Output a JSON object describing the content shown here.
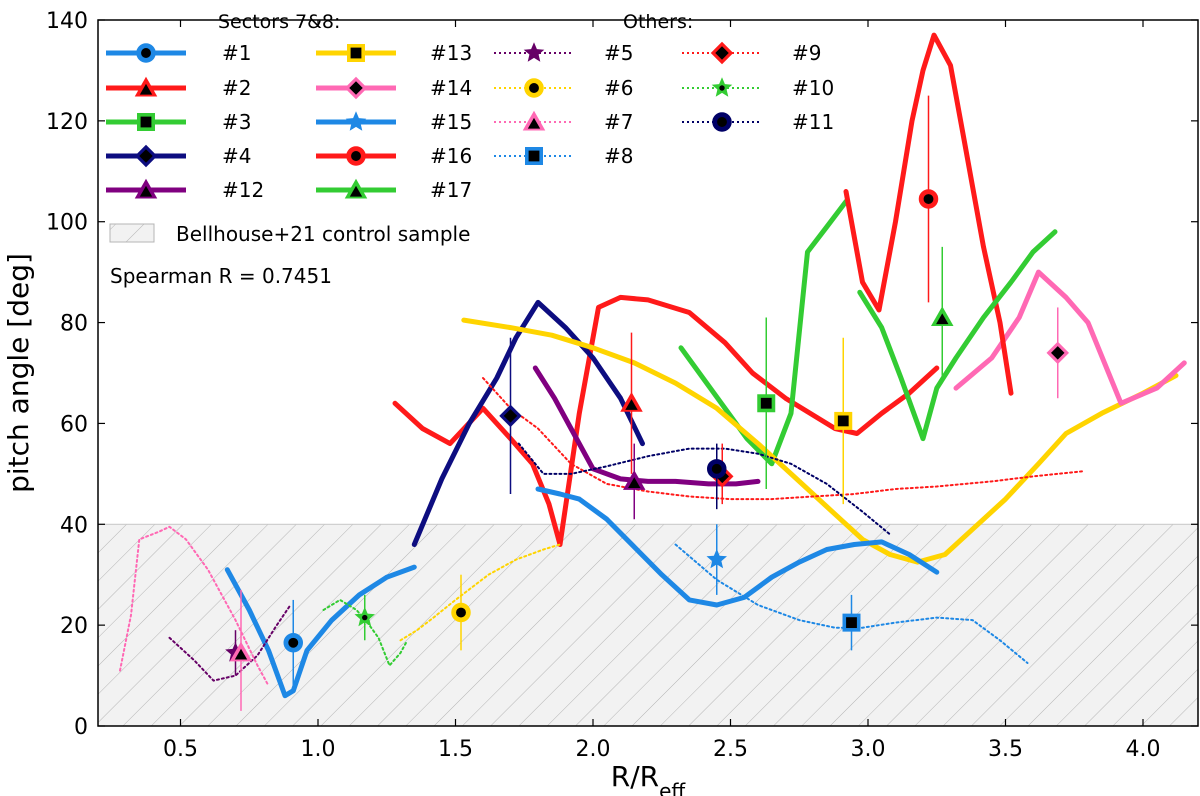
{
  "chart_data": {
    "type": "line",
    "xlabel": "R/R",
    "xlabel_sub": "eff",
    "ylabel": "pitch angle [deg]",
    "xlim": [
      0.2,
      4.2
    ],
    "ylim": [
      0,
      140
    ],
    "xticks": [
      "0.5",
      "1.0",
      "1.5",
      "2.0",
      "2.5",
      "3.0",
      "3.5",
      "4.0"
    ],
    "yticks": [
      "0",
      "20",
      "40",
      "60",
      "80",
      "100",
      "120",
      "140"
    ],
    "control_band": {
      "y0": 0,
      "y1": 40,
      "color": "#f2f2f2"
    },
    "legend_groups": {
      "sectors": "Sectors 7&8:",
      "others": "Others:"
    },
    "control_label": "Bellhouse+21 control sample",
    "annotation": "Spearman R = 0.7451",
    "series": [
      {
        "name": "#1",
        "group": "sectors",
        "color": "#1e88e5",
        "marker": "circle",
        "inner": "#000000",
        "x": [
          0.67,
          0.75,
          0.82,
          0.88,
          0.91,
          0.96,
          1.05,
          1.15,
          1.25,
          1.35
        ],
        "y": [
          31,
          23,
          15,
          6,
          7,
          15,
          21,
          26,
          29.5,
          31.5
        ],
        "point": {
          "x": 0.91,
          "y": 16.5,
          "err": [
            7,
            25
          ]
        }
      },
      {
        "name": "#2",
        "group": "sectors",
        "color": "#ff1a1a",
        "marker": "triangle",
        "inner": "#000000",
        "x": [
          1.28,
          1.38,
          1.48,
          1.6,
          1.7,
          1.78,
          1.84,
          1.88,
          1.95,
          2.02,
          2.1,
          2.2,
          2.35,
          2.48,
          2.58,
          2.7,
          2.88,
          2.96,
          3.05,
          3.15,
          3.25
        ],
        "y": [
          64,
          59,
          56,
          63,
          57,
          52,
          44,
          36,
          62,
          83,
          85,
          84.5,
          82,
          76,
          70,
          65,
          59,
          58,
          62,
          66,
          71
        ],
        "point": {
          "x": 2.14,
          "y": 64,
          "err": [
            50,
            78
          ]
        }
      },
      {
        "name": "#3",
        "group": "sectors",
        "color": "#33cc33",
        "marker": "square",
        "inner": "#000000",
        "x": [
          2.32,
          2.44,
          2.56,
          2.65,
          2.72,
          2.78,
          2.85,
          2.92
        ],
        "y": [
          75,
          66,
          57,
          52,
          62,
          94,
          99,
          104
        ],
        "point": {
          "x": 2.63,
          "y": 64,
          "err": [
            47,
            81
          ]
        }
      },
      {
        "name": "#4",
        "group": "sectors",
        "color": "#0d0d80",
        "marker": "diamond",
        "inner": "#000000",
        "x": [
          1.35,
          1.45,
          1.55,
          1.65,
          1.72,
          1.8,
          1.9,
          2.0,
          2.1,
          2.18
        ],
        "y": [
          36,
          49,
          60,
          69,
          77,
          84,
          79,
          73,
          65,
          56
        ],
        "point": {
          "x": 1.7,
          "y": 61.5,
          "err": [
            46,
            77
          ]
        }
      },
      {
        "name": "#12",
        "group": "sectors",
        "color": "#800080",
        "marker": "triangle",
        "inner": "#000000",
        "x": [
          1.79,
          1.86,
          1.92,
          2.0,
          2.1,
          2.2,
          2.3,
          2.42,
          2.52,
          2.6
        ],
        "y": [
          71,
          65,
          59,
          51,
          49,
          48.5,
          48.5,
          48,
          48,
          48.5
        ],
        "point": {
          "x": 2.15,
          "y": 48.5,
          "err": [
            41,
            56
          ]
        }
      },
      {
        "name": "#13",
        "group": "sectors",
        "color": "#ffd400",
        "marker": "square",
        "inner": "#000000",
        "x": [
          1.53,
          1.7,
          1.85,
          2.0,
          2.15,
          2.3,
          2.45,
          2.6,
          2.75,
          2.88,
          2.98,
          3.08,
          3.18,
          3.28,
          3.38,
          3.5,
          3.62,
          3.72,
          3.85,
          4.0,
          4.12
        ],
        "y": [
          80.5,
          79,
          77.5,
          75,
          72,
          68,
          63,
          56,
          48.5,
          42,
          37,
          34,
          32.5,
          34,
          39,
          45,
          52,
          58,
          62,
          66,
          69.5
        ],
        "point": {
          "x": 2.91,
          "y": 60.5,
          "err": [
            44,
            77
          ]
        }
      },
      {
        "name": "#14",
        "group": "sectors",
        "color": "#ff69b4",
        "marker": "diamond",
        "inner": "#000000",
        "x": [
          3.32,
          3.45,
          3.55,
          3.62,
          3.72,
          3.8,
          3.92,
          4.05,
          4.15
        ],
        "y": [
          67,
          73,
          81,
          90,
          85,
          80,
          64,
          67,
          72
        ],
        "point": {
          "x": 3.69,
          "y": 74,
          "err": [
            65,
            83
          ]
        }
      },
      {
        "name": "#15",
        "group": "sectors",
        "color": "#1e88e5",
        "marker": "star",
        "inner": "#1e88e5",
        "x": [
          1.8,
          1.88,
          1.95,
          2.05,
          2.15,
          2.25,
          2.35,
          2.45,
          2.55,
          2.65,
          2.75,
          2.85,
          2.95,
          3.05,
          3.15,
          3.25
        ],
        "y": [
          47,
          46,
          45,
          41,
          35.5,
          30,
          25,
          24,
          25.5,
          29.5,
          32.5,
          35,
          36,
          36.5,
          34,
          30.5
        ],
        "point": {
          "x": 2.45,
          "y": 33,
          "err": [
            26,
            40
          ]
        }
      },
      {
        "name": "#16",
        "group": "sectors",
        "color": "#ff1a1a",
        "marker": "circle",
        "inner": "#000000",
        "x": [
          2.92,
          2.98,
          3.04,
          3.1,
          3.16,
          3.2,
          3.24,
          3.3,
          3.35,
          3.42,
          3.48,
          3.52
        ],
        "y": [
          106,
          88,
          82.5,
          100,
          120,
          130,
          137,
          131,
          116,
          95,
          80,
          66
        ],
        "point": {
          "x": 3.22,
          "y": 104.5,
          "err": [
            84,
            125
          ]
        }
      },
      {
        "name": "#17",
        "group": "sectors",
        "color": "#33cc33",
        "marker": "triangle",
        "inner": "#000000",
        "x": [
          2.97,
          3.05,
          3.12,
          3.2,
          3.25,
          3.32,
          3.42,
          3.52,
          3.6,
          3.68
        ],
        "y": [
          86,
          79,
          69,
          57,
          67,
          73,
          81,
          88,
          94,
          98
        ],
        "point": {
          "x": 3.27,
          "y": 81,
          "err": [
            68,
            95
          ]
        }
      },
      {
        "name": "#5",
        "group": "others",
        "color": "#660066",
        "marker": "star",
        "inner": "#660066",
        "dotted": true,
        "x": [
          0.46,
          0.55,
          0.62,
          0.7,
          0.78,
          0.85,
          0.9
        ],
        "y": [
          17.5,
          13,
          9,
          10,
          14,
          20,
          24
        ],
        "point": {
          "x": 0.7,
          "y": 14.5,
          "err": [
            10,
            19
          ]
        }
      },
      {
        "name": "#6",
        "group": "others",
        "color": "#ffd400",
        "marker": "circle",
        "inner": "#000000",
        "dotted": true,
        "x": [
          1.3,
          1.36,
          1.42,
          1.5,
          1.62,
          1.72,
          1.82,
          1.88
        ],
        "y": [
          17,
          19,
          21.5,
          25,
          30,
          33,
          35,
          36
        ],
        "point": {
          "x": 1.52,
          "y": 22.5,
          "err": [
            15,
            30
          ]
        }
      },
      {
        "name": "#7",
        "group": "others",
        "color": "#ff69b4",
        "marker": "triangle",
        "inner": "#000000",
        "dotted": true,
        "x": [
          0.28,
          0.32,
          0.35,
          0.42,
          0.46,
          0.52,
          0.6,
          0.7,
          0.78,
          0.82
        ],
        "y": [
          11,
          22,
          37,
          38.5,
          39.5,
          37,
          31,
          21,
          12,
          8
        ],
        "point": {
          "x": 0.72,
          "y": 14.5,
          "err": [
            3,
            27
          ]
        }
      },
      {
        "name": "#8",
        "group": "others",
        "color": "#1e88e5",
        "marker": "square",
        "inner": "#000000",
        "dotted": true,
        "x": [
          2.3,
          2.45,
          2.6,
          2.75,
          2.88,
          2.98,
          3.1,
          3.25,
          3.38,
          3.48,
          3.58
        ],
        "y": [
          36,
          29,
          24,
          21,
          19.5,
          19.5,
          20.5,
          21.5,
          21,
          17,
          12.5
        ],
        "point": {
          "x": 2.94,
          "y": 20.5,
          "err": [
            15,
            26
          ]
        }
      },
      {
        "name": "#9",
        "group": "others",
        "color": "#ff1a1a",
        "marker": "diamond",
        "inner": "#000000",
        "dotted": true,
        "x": [
          1.6,
          1.7,
          1.8,
          1.92,
          2.05,
          2.2,
          2.35,
          2.5,
          2.65,
          2.8,
          2.95,
          3.1,
          3.25,
          3.45,
          3.6,
          3.78
        ],
        "y": [
          69,
          63,
          59,
          52,
          48,
          46.5,
          45.5,
          45,
          45,
          45.5,
          46,
          47,
          47.5,
          48.5,
          49.5,
          50.5
        ],
        "point": {
          "x": 2.47,
          "y": 49.5,
          "err": [
            44,
            56
          ]
        }
      },
      {
        "name": "#10",
        "group": "others",
        "color": "#33cc33",
        "marker": "star",
        "inner": "#000000",
        "dotted": true,
        "x": [
          1.02,
          1.08,
          1.14,
          1.18,
          1.22,
          1.26,
          1.3,
          1.32
        ],
        "y": [
          23,
          25,
          23,
          20.5,
          17.5,
          12,
          14.5,
          16.5
        ],
        "point": {
          "x": 1.17,
          "y": 21.5,
          "err": [
            17,
            26
          ]
        }
      },
      {
        "name": "#11",
        "group": "others",
        "color": "#000066",
        "marker": "circle",
        "inner": "#000000",
        "dotted": true,
        "x": [
          1.73,
          1.82,
          1.92,
          2.05,
          2.2,
          2.35,
          2.48,
          2.6,
          2.72,
          2.85,
          2.98,
          3.08
        ],
        "y": [
          56,
          50,
          50,
          51.5,
          53.5,
          55,
          55,
          54,
          52,
          48,
          42.5,
          38
        ],
        "point": {
          "x": 2.45,
          "y": 51,
          "err": [
            43,
            56
          ]
        }
      }
    ]
  }
}
